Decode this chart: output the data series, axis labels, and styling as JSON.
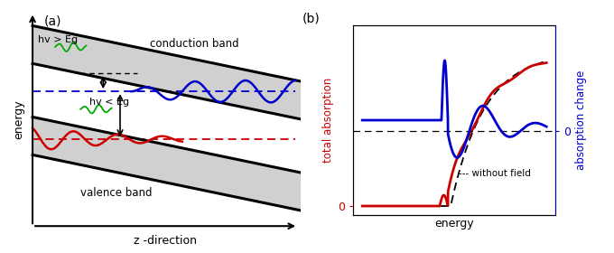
{
  "fig_width": 6.8,
  "fig_height": 2.8,
  "dpi": 100,
  "panel_a_label": "(a)",
  "panel_b_label": "(b)",
  "xlabel_a": "z -direction",
  "ylabel_a": "energy",
  "xlabel_b": "energy",
  "ylabel_b_left": "total absorption",
  "ylabel_b_right": "absorption change",
  "conduction_band_label": "conduction band",
  "valence_band_label": "valence band",
  "hv_gt_label": "hv > Eg",
  "hv_lt_label": "hv < Eg",
  "without_field_label": "--- without field",
  "bg_color": "#d0d0d0",
  "blue_color": "#0000cc",
  "red_color": "#cc0000",
  "green_color": "#00aa00",
  "black_color": "#000000"
}
